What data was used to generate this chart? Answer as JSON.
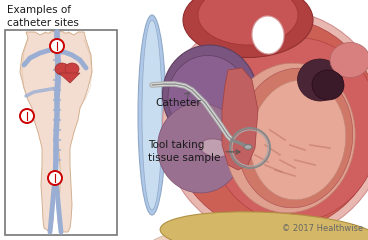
{
  "background_color": "#ffffff",
  "copyright_text": "© 2017 Healthwise",
  "copyright_fontsize": 6,
  "copyright_color": "#666666",
  "label_catheter": "Catheter",
  "label_tool": "Tool taking\ntissue sample",
  "label_examples": "Examples of\ncatheter sites",
  "label_fontsize": 7.5,
  "label_color": "#1a1a1a",
  "circle_color": "#cc0000",
  "arrow_color": "#555555",
  "body_skin": "#f2ddd0",
  "body_outline": "#d4b090",
  "vein_fill": "#9aaed4",
  "vein_edge": "#7a8eb4",
  "heart_small_color": "#c04040",
  "box_edge": "#777777"
}
